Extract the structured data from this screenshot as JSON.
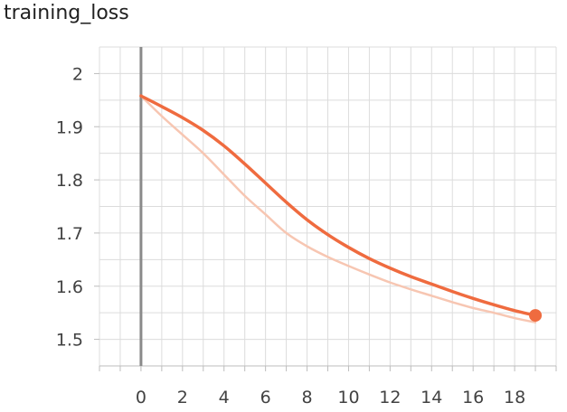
{
  "chart_data": {
    "type": "line",
    "title": "training_loss",
    "xlabel": "",
    "ylabel": "",
    "xlim": [
      -2,
      20
    ],
    "ylim": [
      1.45,
      2.05
    ],
    "grid": true,
    "x_ticks": [
      0,
      2,
      4,
      6,
      8,
      10,
      12,
      14,
      16,
      18
    ],
    "y_ticks": [
      1.5,
      1.6,
      1.7,
      1.8,
      1.9,
      2
    ],
    "series": [
      {
        "role": "smoothed",
        "color": "#ef6b3f",
        "x": [
          0,
          1,
          2,
          3,
          4,
          5,
          6,
          7,
          8,
          9,
          10,
          11,
          12,
          13,
          14,
          15,
          16,
          17,
          18,
          19
        ],
        "y": [
          1.958,
          1.938,
          1.917,
          1.893,
          1.864,
          1.83,
          1.794,
          1.758,
          1.725,
          1.697,
          1.673,
          1.652,
          1.634,
          1.618,
          1.604,
          1.59,
          1.577,
          1.565,
          1.554,
          1.545
        ]
      },
      {
        "role": "raw",
        "color": "#f7c6b2",
        "x": [
          0,
          1,
          2,
          3,
          4,
          5,
          6,
          7,
          8,
          9,
          10,
          11,
          12,
          13,
          14,
          15,
          16,
          17,
          18,
          19
        ],
        "y": [
          1.958,
          1.92,
          1.885,
          1.85,
          1.81,
          1.77,
          1.735,
          1.7,
          1.675,
          1.655,
          1.638,
          1.622,
          1.607,
          1.594,
          1.582,
          1.57,
          1.559,
          1.55,
          1.54,
          1.532
        ]
      }
    ],
    "last_point": {
      "x": 19,
      "y": 1.545,
      "color": "#ef6b3f"
    }
  }
}
